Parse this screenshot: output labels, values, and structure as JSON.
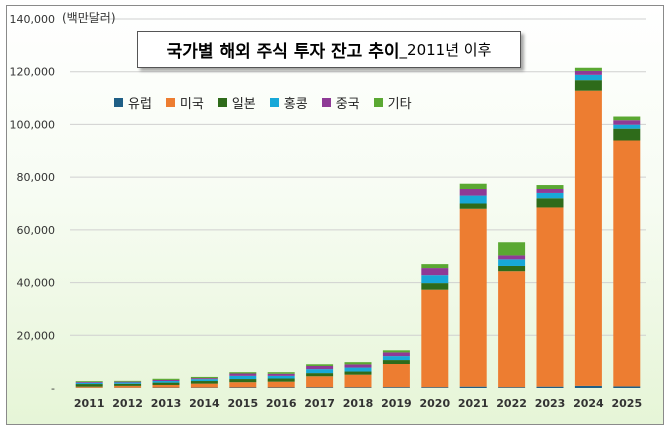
{
  "chart_data": {
    "type": "bar",
    "stacked": true,
    "title": "국가별 해외 주식 투자 잔고 추이",
    "title_suffix": "_2011년 이후",
    "unit_label": "(백만달러)",
    "categories": [
      "2011",
      "2012",
      "2013",
      "2014",
      "2015",
      "2016",
      "2017",
      "2018",
      "2019",
      "2020",
      "2021",
      "2022",
      "2023",
      "2024",
      "2025"
    ],
    "ylim": [
      0,
      140000
    ],
    "yticks": [
      0,
      20000,
      40000,
      60000,
      80000,
      100000,
      120000,
      140000
    ],
    "ytick_labels": [
      "-",
      "20,000",
      "40,000",
      "60,000",
      "80,000",
      "100,000",
      "120,000",
      "140,000"
    ],
    "legend_position": "top-left",
    "grid": true,
    "series": [
      {
        "name": "유럽",
        "color": "#1f5f86",
        "values": [
          100,
          100,
          150,
          150,
          200,
          200,
          250,
          250,
          300,
          300,
          500,
          300,
          500,
          800,
          600
        ]
      },
      {
        "name": "미국",
        "color": "#ed7d31",
        "values": [
          400,
          700,
          1000,
          1500,
          2000,
          2200,
          4200,
          4800,
          8800,
          37000,
          67500,
          44000,
          68000,
          112000,
          93300
        ]
      },
      {
        "name": "일본",
        "color": "#2e6b1a",
        "values": [
          1000,
          800,
          900,
          1000,
          1200,
          1200,
          1200,
          1200,
          1500,
          2500,
          2000,
          2000,
          3500,
          4000,
          4500
        ]
      },
      {
        "name": "홍콩",
        "color": "#17a8d8",
        "values": [
          500,
          500,
          600,
          700,
          1200,
          1000,
          1500,
          1500,
          1500,
          3000,
          3000,
          2500,
          2000,
          2000,
          1500
        ]
      },
      {
        "name": "중국",
        "color": "#8e3a96",
        "values": [
          300,
          300,
          400,
          400,
          900,
          800,
          1200,
          1200,
          1400,
          2700,
          2500,
          1500,
          1500,
          1500,
          1700
        ]
      },
      {
        "name": "기타",
        "color": "#5aa832",
        "values": [
          300,
          300,
          450,
          450,
          500,
          600,
          650,
          850,
          800,
          1500,
          2000,
          5000,
          1500,
          1200,
          1400
        ]
      }
    ]
  }
}
